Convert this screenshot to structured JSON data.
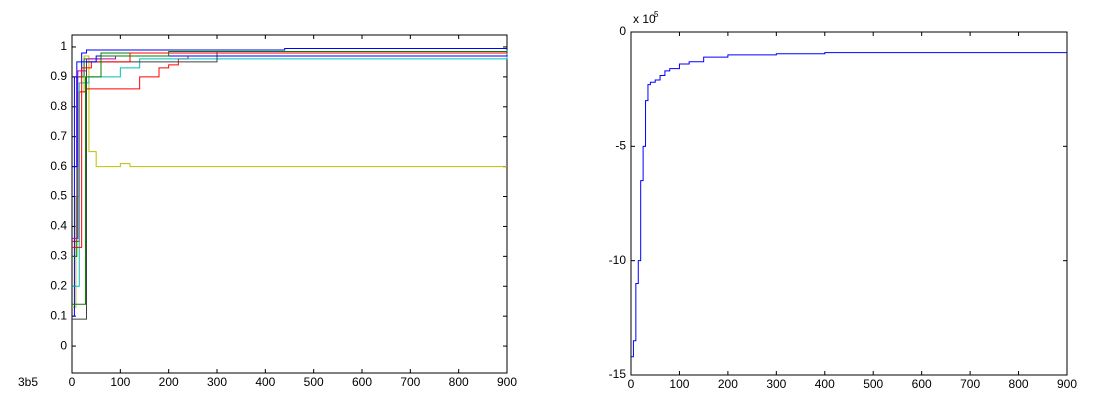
{
  "label": "3b5",
  "chart_data": [
    {
      "type": "line",
      "drawstyle": "steps-post",
      "xlim": [
        0,
        900
      ],
      "xticks": [
        0,
        100,
        200,
        300,
        400,
        500,
        600,
        700,
        800,
        900
      ],
      "ylim": [
        -0.09,
        1.04
      ],
      "yticks": [
        0,
        0.1,
        0.2,
        0.3,
        0.4,
        0.5,
        0.6,
        0.7,
        0.8,
        0.9,
        1
      ],
      "series": [
        {
          "color": "#bfbf00",
          "x": [
            0,
            8,
            15,
            25,
            35,
            50,
            80,
            100,
            120,
            260,
            900
          ],
          "values": [
            0.13,
            0.5,
            0.85,
            0.97,
            0.65,
            0.6,
            0.6,
            0.61,
            0.6,
            0.6,
            0.6
          ]
        },
        {
          "color": "#ff0000",
          "x": [
            0,
            15,
            30,
            60,
            140,
            180,
            200,
            220,
            240,
            350,
            900
          ],
          "values": [
            0.35,
            0.85,
            0.86,
            0.86,
            0.9,
            0.93,
            0.94,
            0.96,
            0.97,
            0.97,
            0.97
          ]
        },
        {
          "color": "#0000ff",
          "x": [
            0,
            5,
            20,
            30,
            440,
            900
          ],
          "values": [
            0.1,
            0.9,
            0.98,
            0.99,
            0.995,
            0.995
          ]
        },
        {
          "color": "#008000",
          "x": [
            0,
            10,
            25,
            60,
            900
          ],
          "values": [
            0.3,
            0.9,
            0.96,
            0.98,
            0.98
          ]
        },
        {
          "color": "#00bfbf",
          "x": [
            0,
            15,
            35,
            100,
            140,
            900
          ],
          "values": [
            0.2,
            0.88,
            0.9,
            0.93,
            0.96,
            0.98
          ]
        },
        {
          "color": "#bf00bf",
          "x": [
            0,
            12,
            30,
            90,
            750
          ],
          "values": [
            0.36,
            0.92,
            0.96,
            0.97,
            0.97
          ]
        },
        {
          "color": "#404040",
          "x": [
            0,
            25,
            30,
            300,
            900
          ],
          "values": [
            0.09,
            0.09,
            0.95,
            0.985,
            0.99
          ]
        },
        {
          "color": "#ff0000",
          "x": [
            0,
            20,
            40,
            120,
            900
          ],
          "values": [
            0.33,
            0.93,
            0.95,
            0.98,
            0.98
          ]
        },
        {
          "color": "#0000ff",
          "x": [
            0,
            10,
            50,
            900
          ],
          "values": [
            0.6,
            0.95,
            0.97,
            0.975
          ]
        },
        {
          "color": "#008000",
          "x": [
            0,
            28,
            60,
            200,
            900
          ],
          "values": [
            0.14,
            0.9,
            0.97,
            0.985,
            0.99
          ]
        }
      ]
    },
    {
      "type": "line",
      "drawstyle": "steps-post",
      "axis_multiplier": {
        "base": "x 10",
        "exponent": "5"
      },
      "xlim": [
        0,
        900
      ],
      "xticks": [
        0,
        100,
        200,
        300,
        400,
        500,
        600,
        700,
        800,
        900
      ],
      "ylim": [
        -15,
        0
      ],
      "yticks": [
        -15,
        -10,
        -5,
        0
      ],
      "series": [
        {
          "color": "#0000ff",
          "x": [
            0,
            5,
            10,
            15,
            20,
            25,
            30,
            35,
            40,
            50,
            60,
            70,
            80,
            100,
            120,
            150,
            200,
            300,
            400,
            900
          ],
          "values": [
            -14.2,
            -13.5,
            -11,
            -10,
            -6.5,
            -5,
            -3,
            -2.3,
            -2.2,
            -2.1,
            -1.9,
            -1.7,
            -1.6,
            -1.4,
            -1.3,
            -1.1,
            -1.0,
            -0.95,
            -0.9,
            -0.9
          ]
        }
      ]
    }
  ]
}
